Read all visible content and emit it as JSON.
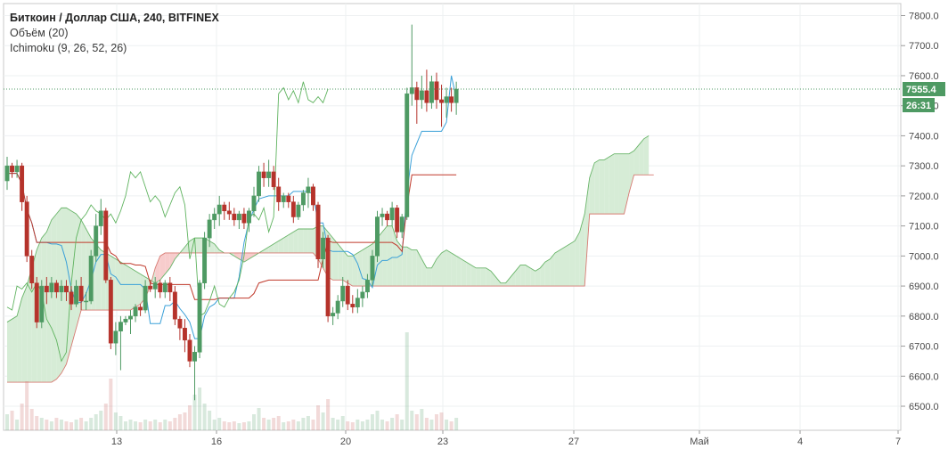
{
  "legend": {
    "title": "Биткоин / Доллар США, 240, BITFINEX",
    "volume": "Объём (20)",
    "ichimoku": "Ichimoku (9, 26, 52, 26)"
  },
  "colors": {
    "up": "#4e9a63",
    "down": "#b5332b",
    "tenkan": "#3aa0d8",
    "kijun": "#c0392b",
    "chikou": "#5fb35f",
    "cloud_bull": "#d6ecd6",
    "cloud_bear": "#f7cccc",
    "last_price": "#4e9a63"
  },
  "price_axis": {
    "ticks": [
      "7800.0",
      "7700.0",
      "7600.0",
      "7500.0",
      "7400.0",
      "7300.0",
      "7200.0",
      "7100.0",
      "7000.0",
      "6900.0",
      "6800.0",
      "6700.0",
      "6600.0",
      "6500.0"
    ],
    "last_price": "7555.4",
    "countdown": "26:31"
  },
  "time_axis": {
    "ticks": [
      "13",
      "16",
      "20",
      "23",
      "27",
      "Май",
      "4",
      "7"
    ]
  },
  "chart_data": {
    "type": "candlestick",
    "symbol": "Биткоин / Доллар США",
    "interval": "240",
    "exchange": "BITFINEX",
    "ylim": [
      6420,
      7840
    ],
    "last_price": 7555.4,
    "candles": [
      [
        7250,
        7330,
        7220,
        7300
      ],
      [
        7300,
        7310,
        7260,
        7280
      ],
      [
        7280,
        7320,
        7260,
        7300
      ],
      [
        7300,
        7310,
        7150,
        7180
      ],
      [
        7180,
        7200,
        6980,
        7000
      ],
      [
        7000,
        7020,
        6890,
        6910
      ],
      [
        6910,
        6930,
        6760,
        6780
      ],
      [
        6780,
        6920,
        6760,
        6900
      ],
      [
        6900,
        6930,
        6840,
        6880
      ],
      [
        6880,
        6930,
        6860,
        6910
      ],
      [
        6910,
        6920,
        6860,
        6880
      ],
      [
        6880,
        6920,
        6850,
        6900
      ],
      [
        6900,
        6920,
        6850,
        6880
      ],
      [
        6880,
        6900,
        6820,
        6840
      ],
      [
        6840,
        6920,
        6830,
        6900
      ],
      [
        6900,
        6930,
        6820,
        6850
      ],
      [
        6850,
        6880,
        6820,
        6850
      ],
      [
        6850,
        7020,
        6840,
        7000
      ],
      [
        7000,
        7140,
        6980,
        7100
      ],
      [
        7100,
        7190,
        7070,
        7150
      ],
      [
        7150,
        7160,
        6910,
        6920
      ],
      [
        6920,
        6930,
        6690,
        6710
      ],
      [
        6710,
        6780,
        6670,
        6750
      ],
      [
        6750,
        6800,
        6620,
        6780
      ],
      [
        6780,
        6800,
        6770,
        6790
      ],
      [
        6790,
        6820,
        6740,
        6800
      ],
      [
        6800,
        6840,
        6780,
        6830
      ],
      [
        6830,
        6840,
        6800,
        6820
      ],
      [
        6820,
        6920,
        6810,
        6900
      ],
      [
        6900,
        6920,
        6880,
        6890
      ],
      [
        6890,
        6930,
        6860,
        6910
      ],
      [
        6910,
        6920,
        6860,
        6880
      ],
      [
        6880,
        6920,
        6860,
        6910
      ],
      [
        6910,
        6930,
        6850,
        6880
      ],
      [
        6880,
        6900,
        6770,
        6790
      ],
      [
        6790,
        6800,
        6720,
        6760
      ],
      [
        6760,
        6790,
        6680,
        6720
      ],
      [
        6720,
        6740,
        6630,
        6650
      ],
      [
        6650,
        6700,
        6520,
        6680
      ],
      [
        6680,
        6920,
        6660,
        6910
      ],
      [
        6910,
        7080,
        6890,
        7060
      ],
      [
        7060,
        7140,
        7030,
        7120
      ],
      [
        7120,
        7160,
        7090,
        7140
      ],
      [
        7140,
        7200,
        7100,
        7170
      ],
      [
        7170,
        7180,
        7120,
        7150
      ],
      [
        7150,
        7180,
        7120,
        7140
      ],
      [
        7140,
        7160,
        7100,
        7120
      ],
      [
        7120,
        7150,
        7090,
        7140
      ],
      [
        7140,
        7160,
        7090,
        7110
      ],
      [
        7110,
        7160,
        7080,
        7150
      ],
      [
        7150,
        7230,
        7130,
        7200
      ],
      [
        7200,
        7300,
        7180,
        7280
      ],
      [
        7280,
        7310,
        7230,
        7260
      ],
      [
        7260,
        7320,
        7230,
        7280
      ],
      [
        7280,
        7300,
        7220,
        7230
      ],
      [
        7230,
        7260,
        7150,
        7180
      ],
      [
        7180,
        7210,
        7160,
        7200
      ],
      [
        7200,
        7210,
        7160,
        7180
      ],
      [
        7180,
        7200,
        7110,
        7130
      ],
      [
        7130,
        7180,
        7120,
        7170
      ],
      [
        7170,
        7220,
        7150,
        7210
      ],
      [
        7210,
        7260,
        7160,
        7230
      ],
      [
        7230,
        7240,
        7150,
        7170
      ],
      [
        7170,
        7180,
        6960,
        6990
      ],
      [
        6990,
        7080,
        6960,
        7060
      ],
      [
        7060,
        7070,
        6780,
        6800
      ],
      [
        6800,
        6830,
        6770,
        6810
      ],
      [
        6810,
        6870,
        6790,
        6850
      ],
      [
        6850,
        6930,
        6830,
        6900
      ],
      [
        6900,
        6920,
        6820,
        6840
      ],
      [
        6840,
        6870,
        6810,
        6830
      ],
      [
        6830,
        6890,
        6810,
        6860
      ],
      [
        6860,
        6900,
        6830,
        6880
      ],
      [
        6880,
        6940,
        6860,
        6920
      ],
      [
        6920,
        7020,
        6900,
        7000
      ],
      [
        7000,
        7150,
        6980,
        7130
      ],
      [
        7130,
        7160,
        7100,
        7140
      ],
      [
        7140,
        7150,
        7100,
        7120
      ],
      [
        7120,
        7180,
        7100,
        7160
      ],
      [
        7160,
        7170,
        7060,
        7080
      ],
      [
        7080,
        7140,
        7060,
        7130
      ],
      [
        7130,
        7560,
        7120,
        7540
      ],
      [
        7540,
        7770,
        7500,
        7560
      ],
      [
        7560,
        7580,
        7440,
        7520
      ],
      [
        7520,
        7600,
        7490,
        7550
      ],
      [
        7550,
        7620,
        7480,
        7510
      ],
      [
        7510,
        7600,
        7490,
        7580
      ],
      [
        7580,
        7610,
        7490,
        7520
      ],
      [
        7520,
        7570,
        7430,
        7510
      ],
      [
        7510,
        7560,
        7460,
        7530
      ],
      [
        7530,
        7560,
        7480,
        7510
      ],
      [
        7510,
        7580,
        7470,
        7555.4
      ]
    ],
    "series": [
      {
        "name": "Объём (20)",
        "type": "volume"
      },
      {
        "name": "Ichimoku (9, 26, 52, 26)",
        "type": "ichimoku"
      }
    ],
    "x_tick_labels": [
      "13",
      "16",
      "20",
      "23",
      "27",
      "Май",
      "4",
      "7"
    ],
    "y_tick_labels": [
      "7800.0",
      "7700.0",
      "7600.0",
      "7500.0",
      "7400.0",
      "7300.0",
      "7200.0",
      "7100.0",
      "7000.0",
      "6900.0",
      "6800.0",
      "6700.0",
      "6600.0",
      "6500.0"
    ],
    "grid": true
  }
}
